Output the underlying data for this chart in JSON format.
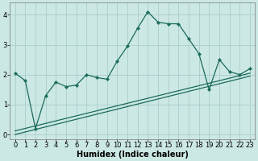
{
  "xlabel": "Humidex (Indice chaleur)",
  "bg_color": "#cce8e4",
  "grid_color": "#aacccc",
  "line_color": "#1a6b5a",
  "x_values": [
    0,
    1,
    2,
    3,
    4,
    5,
    6,
    7,
    8,
    9,
    10,
    11,
    12,
    13,
    14,
    15,
    16,
    17,
    18,
    19,
    20,
    21,
    22,
    23
  ],
  "main_line": [
    2.05,
    1.8,
    0.2,
    1.3,
    1.75,
    1.6,
    1.65,
    2.0,
    1.9,
    1.85,
    2.45,
    2.95,
    3.55,
    4.1,
    3.75,
    3.7,
    3.7,
    3.2,
    2.7,
    1.5,
    2.5,
    2.1,
    2.0,
    2.2
  ],
  "reg1_start_y": 0.12,
  "reg1_end_y": 2.05,
  "reg2_start_y": 0.0,
  "reg2_end_y": 1.95,
  "ylim": [
    -0.15,
    4.4
  ],
  "yticks": [
    0,
    1,
    2,
    3,
    4
  ],
  "xlim": [
    -0.5,
    23.5
  ],
  "tick_fontsize": 6,
  "xlabel_fontsize": 7
}
